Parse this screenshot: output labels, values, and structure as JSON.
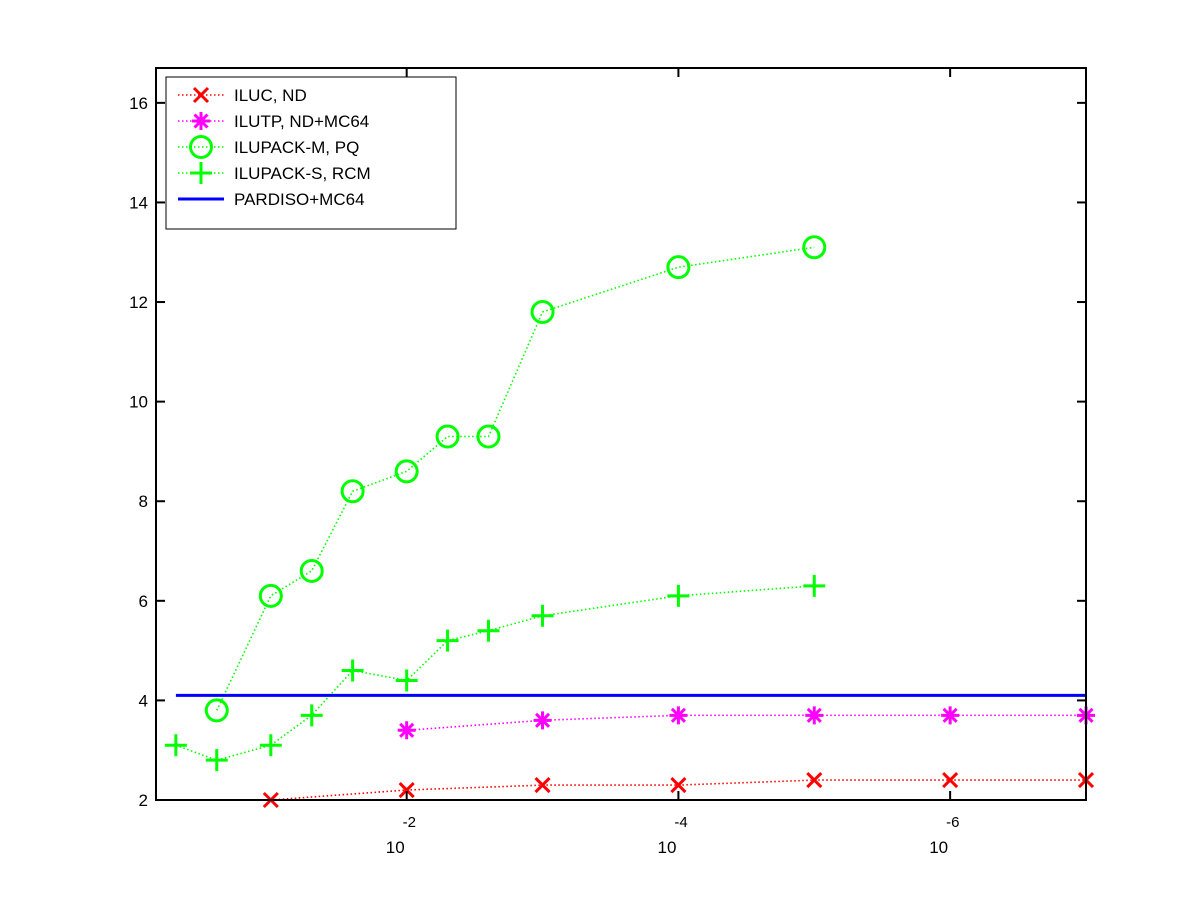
{
  "chart_data": {
    "type": "line",
    "title": "",
    "xlabel": "",
    "ylabel": "",
    "x_scale": "log-reversed",
    "xlim": [
      0.7,
      1e-07
    ],
    "ylim": [
      2,
      16.7
    ],
    "yticks": [
      2,
      4,
      6,
      8,
      10,
      12,
      14,
      16
    ],
    "yticklabels": [
      "2",
      "4",
      "6",
      "8",
      "10",
      "12",
      "14",
      "16"
    ],
    "xticks": [
      {
        "value": 0.01,
        "base": "10",
        "exponent": "-2"
      },
      {
        "value": 0.0001,
        "base": "10",
        "exponent": "-4"
      },
      {
        "value": 1e-06,
        "base": "10",
        "exponent": "-6"
      }
    ],
    "grid": false,
    "legend_position": "top-left",
    "series": [
      {
        "name": "ILUC,  ND",
        "color": "#ff0000",
        "marker": "x",
        "line": "dotted",
        "x": [
          0.1,
          0.01,
          0.001,
          0.0001,
          1e-05,
          1e-06,
          1e-07
        ],
        "y": [
          2.0,
          2.2,
          2.3,
          2.3,
          2.4,
          2.4,
          2.4
        ]
      },
      {
        "name": "ILUTP,  ND+MC64",
        "color": "#ff00ff",
        "marker": "star",
        "line": "dotted",
        "x": [
          0.01,
          0.001,
          0.0001,
          1e-05,
          1e-06,
          1e-07
        ],
        "y": [
          3.4,
          3.6,
          3.7,
          3.7,
          3.7,
          3.7
        ]
      },
      {
        "name": "ILUPACK-M, PQ",
        "color": "#00ff00",
        "marker": "circle",
        "line": "dotted",
        "x": [
          0.25,
          0.1,
          0.05,
          0.025,
          0.01,
          0.005,
          0.0025,
          0.001,
          0.0001,
          1e-05
        ],
        "y": [
          3.8,
          6.1,
          6.6,
          8.2,
          8.6,
          9.3,
          9.3,
          11.8,
          12.7,
          13.1
        ]
      },
      {
        "name": "ILUPACK-S, RCM",
        "color": "#00ff00",
        "marker": "plus",
        "line": "dotted",
        "x": [
          0.5,
          0.25,
          0.1,
          0.05,
          0.025,
          0.01,
          0.005,
          0.0025,
          0.001,
          0.0001,
          1e-05
        ],
        "y": [
          3.1,
          2.8,
          3.1,
          3.7,
          4.6,
          4.4,
          5.2,
          5.4,
          5.7,
          6.1,
          6.3
        ]
      },
      {
        "name": "PARDISO+MC64",
        "color": "#0000ff",
        "marker": "none",
        "line": "solid",
        "x": [
          0.5,
          1e-07
        ],
        "y": [
          4.1,
          4.1
        ]
      }
    ]
  }
}
